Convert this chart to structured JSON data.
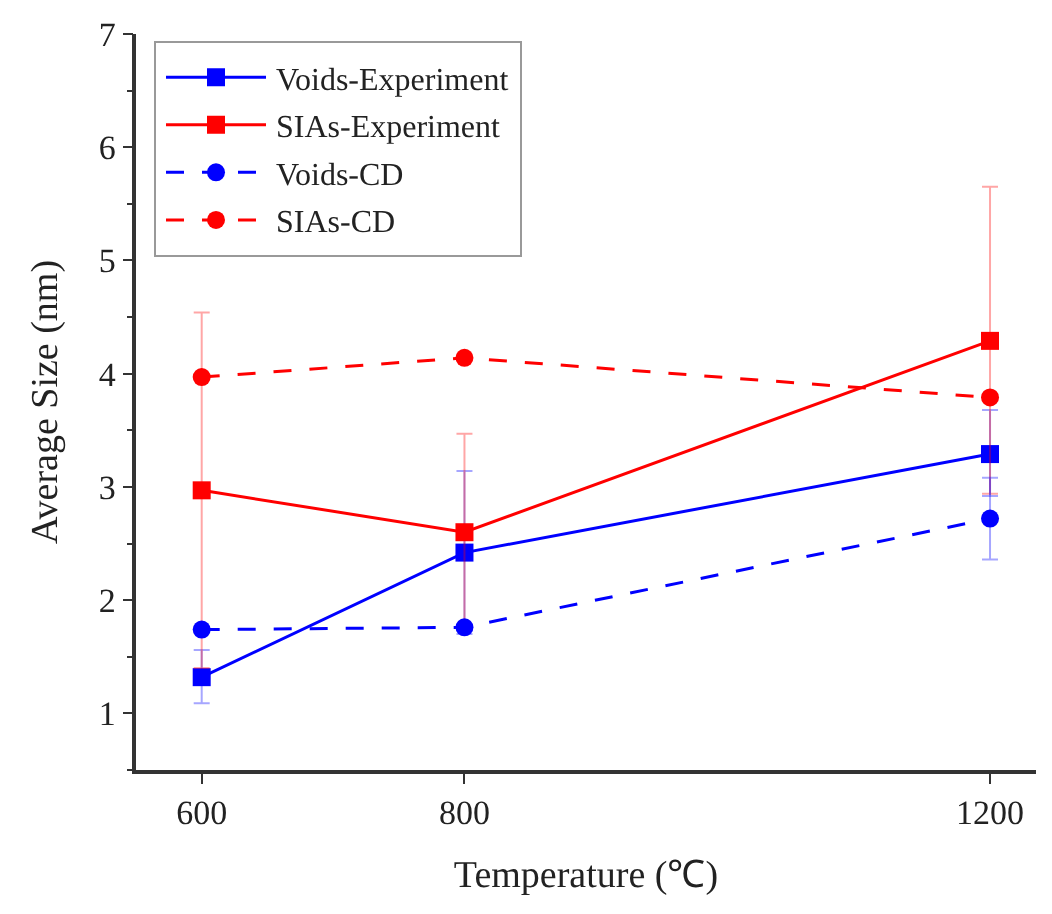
{
  "chart_data": {
    "type": "line",
    "xlabel": "Temperature (℃)",
    "ylabel": "Average Size (nm)",
    "x": [
      600,
      800,
      1200
    ],
    "xlim": [
      550,
      1235
    ],
    "xticks": [
      600,
      800,
      1200
    ],
    "ylim": [
      0.5,
      7
    ],
    "yticks": [
      1,
      2,
      3,
      4,
      5,
      6,
      7
    ],
    "legend": "top left",
    "series": [
      {
        "name": "Voids-Experiment",
        "color": "#0000ff",
        "marker": "square",
        "line_style": "solid",
        "values": [
          1.32,
          2.42,
          3.29
        ],
        "errors": [
          [
            1.09,
            1.56
          ],
          [
            1.7,
            3.14
          ],
          [
            2.92,
            3.68
          ]
        ]
      },
      {
        "name": "SIAs-Experiment",
        "color": "#ff0000",
        "marker": "square",
        "line_style": "solid",
        "values": [
          2.97,
          2.6,
          4.29
        ],
        "errors": [
          [
            1.4,
            4.54
          ],
          [
            1.74,
            3.47
          ],
          [
            2.94,
            5.65
          ]
        ]
      },
      {
        "name": "Voids-CD",
        "color": "#0000ff",
        "marker": "circle",
        "line_style": "dashed",
        "values": [
          1.74,
          1.76,
          2.72
        ],
        "errors": [
          null,
          null,
          [
            2.36,
            3.08
          ]
        ]
      },
      {
        "name": "SIAs-CD",
        "color": "#ff0000",
        "marker": "circle",
        "line_style": "dashed",
        "values": [
          3.97,
          4.14,
          3.79
        ]
      }
    ]
  }
}
